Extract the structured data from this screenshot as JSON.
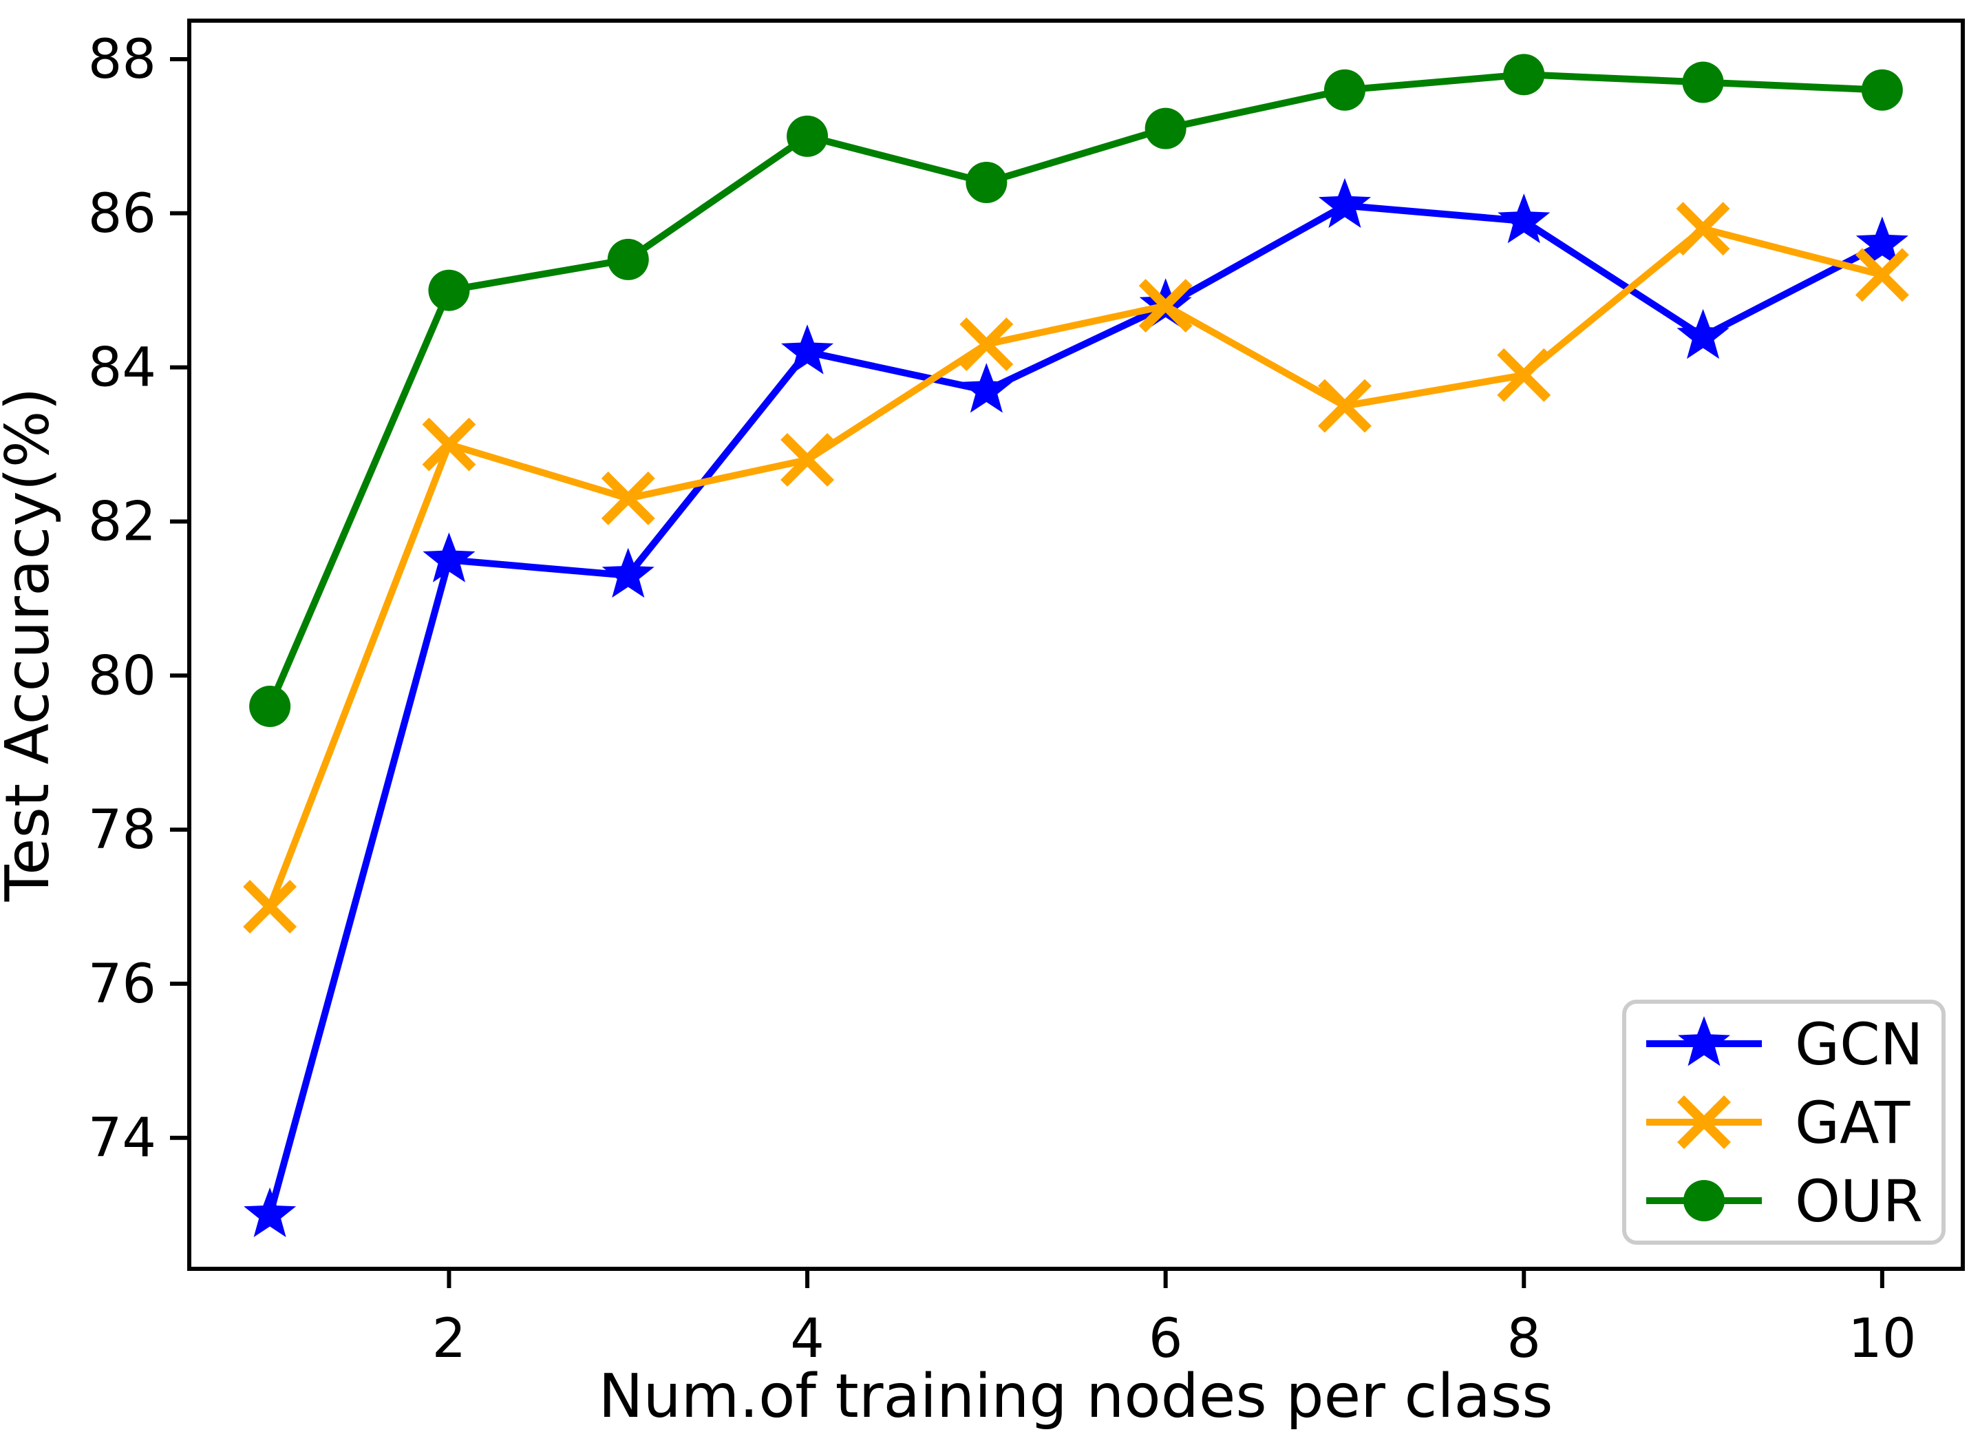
{
  "chart_data": {
    "type": "line",
    "title": "",
    "xlabel": "Num.of training nodes per class",
    "ylabel": "Test Accuracy(%)",
    "x": [
      1,
      2,
      3,
      4,
      5,
      6,
      7,
      8,
      9,
      10
    ],
    "series": [
      {
        "name": "GCN",
        "color": "#0000ff",
        "marker": "star",
        "values": [
          73.0,
          81.5,
          81.3,
          84.2,
          83.7,
          84.8,
          86.1,
          85.9,
          84.4,
          85.6
        ]
      },
      {
        "name": "GAT",
        "color": "#ffa500",
        "marker": "x",
        "values": [
          77.0,
          83.0,
          82.3,
          82.8,
          84.3,
          84.8,
          83.5,
          83.9,
          85.8,
          85.2
        ]
      },
      {
        "name": "OUR",
        "color": "#008000",
        "marker": "circle",
        "values": [
          79.6,
          85.0,
          85.4,
          87.0,
          86.4,
          87.1,
          87.6,
          87.8,
          87.7,
          87.6
        ]
      }
    ],
    "xticks": [
      2,
      4,
      6,
      8,
      10
    ],
    "yticks": [
      74,
      76,
      78,
      80,
      82,
      84,
      86,
      88
    ],
    "xlim": [
      0.55,
      10.45
    ],
    "ylim": [
      72.3,
      88.5
    ],
    "grid": false,
    "axis_color": "#000000",
    "background_color": "#ffffff",
    "legend": {
      "position": "lower right",
      "entries": [
        "GCN",
        "GAT",
        "OUR"
      ],
      "border_color": "#cccccc",
      "fill_color": "#ffffff",
      "text_color": "#000000"
    }
  }
}
